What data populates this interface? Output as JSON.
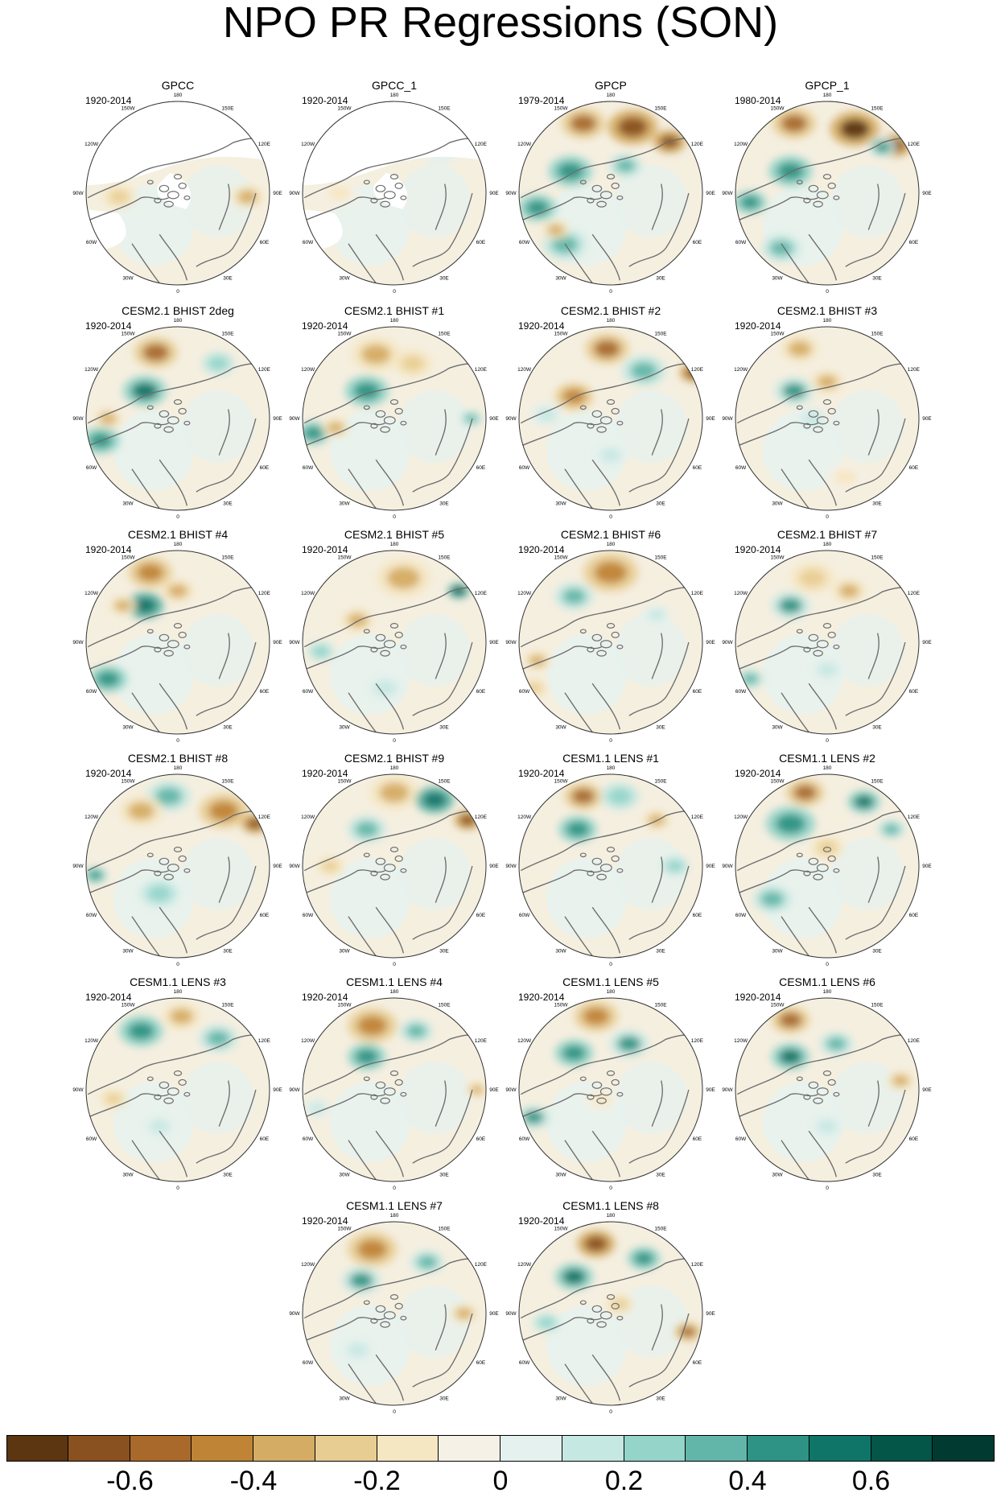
{
  "title": "NPO PR Regressions (SON)",
  "lon_labels": [
    "180",
    "150E",
    "120E",
    "90E",
    "60E",
    "30E",
    "0",
    "30W",
    "60W",
    "90W",
    "120W",
    "150W"
  ],
  "panels": [
    {
      "title": "GPCC",
      "period": "1920-2014",
      "missing": true,
      "blobs": [
        [
          0.88,
          0.52,
          0.06,
          -0.3
        ],
        [
          0.18,
          0.52,
          0.06,
          -0.2
        ]
      ]
    },
    {
      "title": "GPCC_1",
      "period": "1920-2014",
      "missing": true,
      "blobs": [
        [
          0.2,
          0.5,
          0.07,
          -0.15
        ],
        [
          0.75,
          0.3,
          0.05,
          0.1
        ]
      ]
    },
    {
      "title": "GPCP",
      "period": "1979-2014",
      "missing": false,
      "blobs": [
        [
          0.35,
          0.12,
          0.08,
          -0.5
        ],
        [
          0.62,
          0.14,
          0.09,
          -0.65
        ],
        [
          0.82,
          0.22,
          0.06,
          -0.7
        ],
        [
          0.28,
          0.38,
          0.08,
          0.45
        ],
        [
          0.1,
          0.58,
          0.07,
          0.5
        ],
        [
          0.25,
          0.78,
          0.08,
          0.35
        ],
        [
          0.58,
          0.35,
          0.06,
          0.3
        ],
        [
          0.2,
          0.7,
          0.05,
          -0.3
        ]
      ]
    },
    {
      "title": "GPCP_1",
      "period": "1980-2014",
      "missing": false,
      "blobs": [
        [
          0.32,
          0.12,
          0.08,
          -0.5
        ],
        [
          0.65,
          0.15,
          0.09,
          -0.75
        ],
        [
          0.87,
          0.24,
          0.06,
          -0.65
        ],
        [
          0.3,
          0.38,
          0.08,
          0.45
        ],
        [
          0.08,
          0.55,
          0.06,
          0.5
        ],
        [
          0.25,
          0.8,
          0.07,
          0.35
        ],
        [
          0.8,
          0.25,
          0.05,
          0.4
        ]
      ]
    },
    {
      "title": "CESM2.1 BHIST 2deg",
      "period": "1920-2014",
      "missing": false,
      "blobs": [
        [
          0.38,
          0.14,
          0.08,
          -0.55
        ],
        [
          0.32,
          0.35,
          0.08,
          0.55
        ],
        [
          0.08,
          0.62,
          0.07,
          0.5
        ],
        [
          0.12,
          0.5,
          0.05,
          -0.3
        ],
        [
          0.72,
          0.2,
          0.06,
          0.25
        ]
      ]
    },
    {
      "title": "CESM2.1 BHIST #1",
      "period": "1920-2014",
      "missing": false,
      "blobs": [
        [
          0.4,
          0.15,
          0.09,
          -0.35
        ],
        [
          0.35,
          0.35,
          0.08,
          0.5
        ],
        [
          0.06,
          0.58,
          0.06,
          0.5
        ],
        [
          0.18,
          0.55,
          0.05,
          -0.3
        ],
        [
          0.92,
          0.5,
          0.04,
          0.35
        ],
        [
          0.6,
          0.2,
          0.07,
          -0.2
        ]
      ]
    },
    {
      "title": "CESM2.1 BHIST #2",
      "period": "1920-2014",
      "missing": false,
      "blobs": [
        [
          0.48,
          0.12,
          0.08,
          -0.55
        ],
        [
          0.68,
          0.24,
          0.08,
          0.3
        ],
        [
          0.95,
          0.25,
          0.05,
          -0.65
        ],
        [
          0.3,
          0.38,
          0.07,
          -0.45
        ],
        [
          0.15,
          0.48,
          0.06,
          0.2
        ],
        [
          0.5,
          0.7,
          0.06,
          0.2
        ]
      ]
    },
    {
      "title": "CESM2.1 BHIST #3",
      "period": "1920-2014",
      "missing": false,
      "blobs": [
        [
          0.35,
          0.12,
          0.07,
          -0.35
        ],
        [
          0.32,
          0.35,
          0.07,
          0.4
        ],
        [
          0.5,
          0.3,
          0.06,
          -0.35
        ],
        [
          0.42,
          0.5,
          0.06,
          0.2
        ],
        [
          0.6,
          0.82,
          0.07,
          -0.15
        ]
      ]
    },
    {
      "title": "CESM2.1 BHIST #4",
      "period": "1920-2014",
      "missing": false,
      "blobs": [
        [
          0.35,
          0.12,
          0.08,
          -0.4
        ],
        [
          0.32,
          0.3,
          0.07,
          0.6
        ],
        [
          0.2,
          0.3,
          0.05,
          -0.3
        ],
        [
          0.12,
          0.7,
          0.07,
          0.45
        ],
        [
          0.5,
          0.22,
          0.06,
          -0.35
        ]
      ]
    },
    {
      "title": "CESM2.1 BHIST #5",
      "period": "1920-2014",
      "missing": false,
      "blobs": [
        [
          0.55,
          0.15,
          0.1,
          -0.3
        ],
        [
          0.85,
          0.22,
          0.04,
          0.65
        ],
        [
          0.3,
          0.38,
          0.06,
          -0.3
        ],
        [
          0.1,
          0.55,
          0.05,
          0.25
        ],
        [
          0.45,
          0.75,
          0.07,
          0.15
        ]
      ]
    },
    {
      "title": "CESM2.1 BHIST #6",
      "period": "1920-2014",
      "missing": false,
      "blobs": [
        [
          0.5,
          0.12,
          0.1,
          -0.45
        ],
        [
          0.3,
          0.25,
          0.07,
          0.35
        ],
        [
          0.1,
          0.6,
          0.05,
          -0.3
        ],
        [
          0.08,
          0.75,
          0.05,
          -0.25
        ],
        [
          0.75,
          0.35,
          0.05,
          0.2
        ]
      ]
    },
    {
      "title": "CESM2.1 BHIST #7",
      "period": "1920-2014",
      "missing": false,
      "blobs": [
        [
          0.42,
          0.15,
          0.08,
          -0.25
        ],
        [
          0.3,
          0.3,
          0.07,
          0.4
        ],
        [
          0.62,
          0.22,
          0.06,
          -0.35
        ],
        [
          0.08,
          0.7,
          0.05,
          0.35
        ],
        [
          0.5,
          0.65,
          0.06,
          0.15
        ]
      ]
    },
    {
      "title": "CESM2.1 BHIST #8",
      "period": "1920-2014",
      "missing": false,
      "blobs": [
        [
          0.45,
          0.12,
          0.08,
          0.35
        ],
        [
          0.3,
          0.2,
          0.08,
          -0.3
        ],
        [
          0.75,
          0.2,
          0.09,
          -0.45
        ],
        [
          0.92,
          0.27,
          0.05,
          -0.7
        ],
        [
          0.05,
          0.55,
          0.04,
          0.5
        ],
        [
          0.4,
          0.65,
          0.07,
          0.25
        ]
      ]
    },
    {
      "title": "CESM2.1 BHIST #9",
      "period": "1920-2014",
      "missing": false,
      "blobs": [
        [
          0.5,
          0.1,
          0.09,
          -0.35
        ],
        [
          0.72,
          0.14,
          0.07,
          0.6
        ],
        [
          0.9,
          0.25,
          0.05,
          -0.7
        ],
        [
          0.35,
          0.3,
          0.07,
          0.3
        ],
        [
          0.15,
          0.5,
          0.05,
          -0.25
        ]
      ]
    },
    {
      "title": "CESM1.1 LENS #1",
      "period": "1920-2014",
      "missing": false,
      "blobs": [
        [
          0.35,
          0.12,
          0.07,
          -0.55
        ],
        [
          0.32,
          0.3,
          0.07,
          0.45
        ],
        [
          0.55,
          0.12,
          0.07,
          0.25
        ],
        [
          0.75,
          0.25,
          0.05,
          -0.3
        ],
        [
          0.85,
          0.5,
          0.05,
          0.25
        ]
      ]
    },
    {
      "title": "CESM1.1 LENS #2",
      "period": "1920-2014",
      "missing": false,
      "blobs": [
        [
          0.38,
          0.1,
          0.07,
          -0.5
        ],
        [
          0.3,
          0.27,
          0.09,
          0.5
        ],
        [
          0.7,
          0.15,
          0.06,
          0.55
        ],
        [
          0.85,
          0.3,
          0.05,
          0.3
        ],
        [
          0.2,
          0.68,
          0.07,
          0.3
        ],
        [
          0.5,
          0.4,
          0.06,
          -0.2
        ]
      ]
    },
    {
      "title": "CESM1.1 LENS #3",
      "period": "1920-2014",
      "missing": false,
      "blobs": [
        [
          0.3,
          0.18,
          0.08,
          0.5
        ],
        [
          0.52,
          0.1,
          0.07,
          -0.35
        ],
        [
          0.72,
          0.22,
          0.07,
          0.35
        ],
        [
          0.15,
          0.55,
          0.05,
          -0.25
        ],
        [
          0.4,
          0.7,
          0.06,
          0.15
        ]
      ]
    },
    {
      "title": "CESM1.1 LENS #4",
      "period": "1920-2014",
      "missing": false,
      "blobs": [
        [
          0.38,
          0.15,
          0.09,
          -0.4
        ],
        [
          0.35,
          0.32,
          0.07,
          0.5
        ],
        [
          0.62,
          0.18,
          0.06,
          0.3
        ],
        [
          0.95,
          0.5,
          0.04,
          -0.35
        ],
        [
          0.08,
          0.6,
          0.05,
          0.2
        ]
      ]
    },
    {
      "title": "CESM1.1 LENS #5",
      "period": "1920-2014",
      "missing": false,
      "blobs": [
        [
          0.42,
          0.1,
          0.08,
          -0.4
        ],
        [
          0.3,
          0.3,
          0.07,
          0.45
        ],
        [
          0.6,
          0.25,
          0.07,
          0.4
        ],
        [
          0.08,
          0.65,
          0.06,
          0.4
        ],
        [
          0.45,
          0.55,
          0.06,
          -0.15
        ]
      ]
    },
    {
      "title": "CESM1.1 LENS #6",
      "period": "1920-2014",
      "missing": false,
      "blobs": [
        [
          0.3,
          0.12,
          0.07,
          -0.5
        ],
        [
          0.3,
          0.32,
          0.07,
          0.55
        ],
        [
          0.55,
          0.25,
          0.06,
          0.35
        ],
        [
          0.9,
          0.45,
          0.05,
          -0.3
        ],
        [
          0.5,
          0.7,
          0.06,
          0.15
        ]
      ]
    },
    {
      "title": "CESM1.1 LENS #7",
      "period": "1920-2014",
      "missing": false,
      "blobs": [
        [
          0.38,
          0.15,
          0.09,
          -0.45
        ],
        [
          0.32,
          0.32,
          0.07,
          0.4
        ],
        [
          0.68,
          0.22,
          0.06,
          0.3
        ],
        [
          0.88,
          0.5,
          0.05,
          -0.3
        ],
        [
          0.3,
          0.7,
          0.06,
          0.15
        ]
      ]
    },
    {
      "title": "CESM1.1 LENS #8",
      "period": "1920-2014",
      "missing": false,
      "blobs": [
        [
          0.42,
          0.12,
          0.07,
          -0.6
        ],
        [
          0.3,
          0.3,
          0.07,
          0.55
        ],
        [
          0.68,
          0.2,
          0.06,
          0.45
        ],
        [
          0.92,
          0.6,
          0.05,
          -0.55
        ],
        [
          0.15,
          0.55,
          0.05,
          0.25
        ],
        [
          0.55,
          0.45,
          0.05,
          -0.2
        ]
      ]
    }
  ],
  "colorbar": {
    "colors": [
      "#5c3511",
      "#8a5120",
      "#a9692b",
      "#c08436",
      "#d5ac64",
      "#e8cd93",
      "#f5e7c2",
      "#f5f1e6",
      "#e4f1ee",
      "#c5e8e2",
      "#94d4c9",
      "#62b6a9",
      "#2e9384",
      "#0f7568",
      "#045649",
      "#003a30"
    ],
    "bin_min": -0.7,
    "bin_step": 0.1,
    "labels": [
      "-0.6",
      "-0.4",
      "-0.2",
      "0",
      "0.2",
      "0.4",
      "0.6"
    ],
    "label_values": [
      -0.6,
      -0.4,
      -0.2,
      0,
      0.2,
      0.4,
      0.6
    ]
  }
}
